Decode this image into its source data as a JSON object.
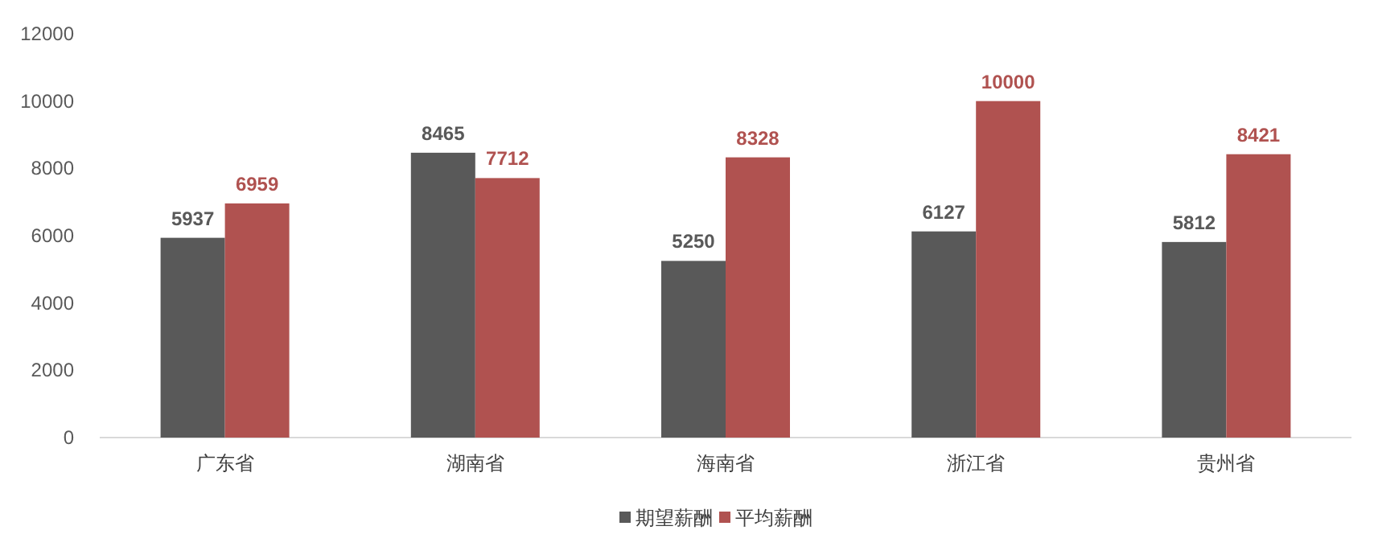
{
  "chart_data": {
    "type": "bar",
    "categories": [
      "广东省",
      "湖南省",
      "海南省",
      "浙江省",
      "贵州省"
    ],
    "series": [
      {
        "name": "期望薪酬",
        "color": "#595959",
        "values": [
          5937,
          8465,
          5250,
          6127,
          5812
        ]
      },
      {
        "name": "平均薪酬",
        "color": "#b05250",
        "values": [
          6959,
          7712,
          8328,
          10000,
          8421
        ]
      }
    ],
    "ylim": [
      0,
      12000
    ],
    "yticks": [
      0,
      2000,
      4000,
      6000,
      8000,
      10000,
      12000
    ],
    "data_labels": true,
    "legend": "bottom",
    "grid": false
  }
}
